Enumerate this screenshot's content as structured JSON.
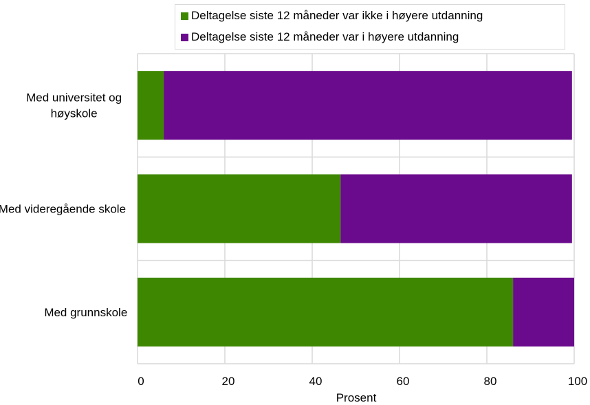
{
  "chart_data": {
    "type": "bar",
    "orientation": "horizontal",
    "stacked": true,
    "categories": [
      "Med universitet og høyskole",
      "Med videregående skole",
      "Med grunnskole"
    ],
    "category_lines": [
      [
        "Med universitet og",
        "høyskole"
      ],
      [
        "Med videregående skole"
      ],
      [
        "Med grunnskole"
      ]
    ],
    "series": [
      {
        "name": "Deltagelse siste 12 måneder var ikke i høyere utdanning",
        "color": "#3e8701",
        "values": [
          6,
          46.5,
          86
        ]
      },
      {
        "name": "Deltagelse siste 12 måneder var i høyere utdanning",
        "color": "#6a0a8c",
        "values": [
          93.5,
          53,
          14
        ]
      }
    ],
    "xlabel": "Prosent",
    "ylabel": "",
    "xlim": [
      0,
      100
    ],
    "xticks": [
      "0",
      "20",
      "40",
      "60",
      "80",
      "100"
    ],
    "grid": true,
    "legend_position": "top"
  }
}
